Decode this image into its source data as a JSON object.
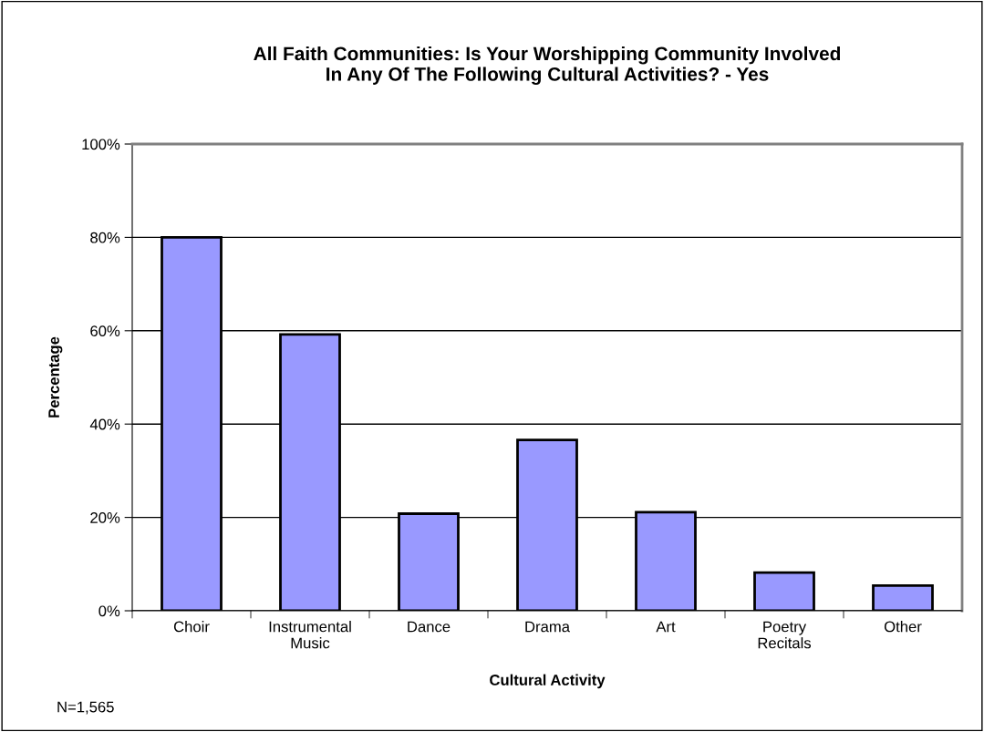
{
  "chart_data": {
    "type": "bar",
    "title": "All Faith Communities: Is Your Worshipping Community Involved\nIn Any Of The Following Cultural Activities? - Yes",
    "xlabel": "Cultural Activity",
    "ylabel": "Percentage",
    "categories": [
      "Choir",
      "Instrumental\nMusic",
      "Dance",
      "Drama",
      "Art",
      "Poetry\nRecitals",
      "Other"
    ],
    "values": [
      80,
      59.2,
      20.8,
      36.6,
      21.1,
      8.2,
      5.4
    ],
    "color": "#9999ff",
    "ylim": [
      0,
      100
    ],
    "yticks": [
      {
        "value": 0,
        "label": "0%"
      },
      {
        "value": 20,
        "label": "20%"
      },
      {
        "value": 40,
        "label": "40%"
      },
      {
        "value": 60,
        "label": "60%"
      },
      {
        "value": 80,
        "label": "80%"
      },
      {
        "value": 100,
        "label": "100%"
      }
    ],
    "grid": "y",
    "annotations": [
      "N=1,565"
    ]
  }
}
